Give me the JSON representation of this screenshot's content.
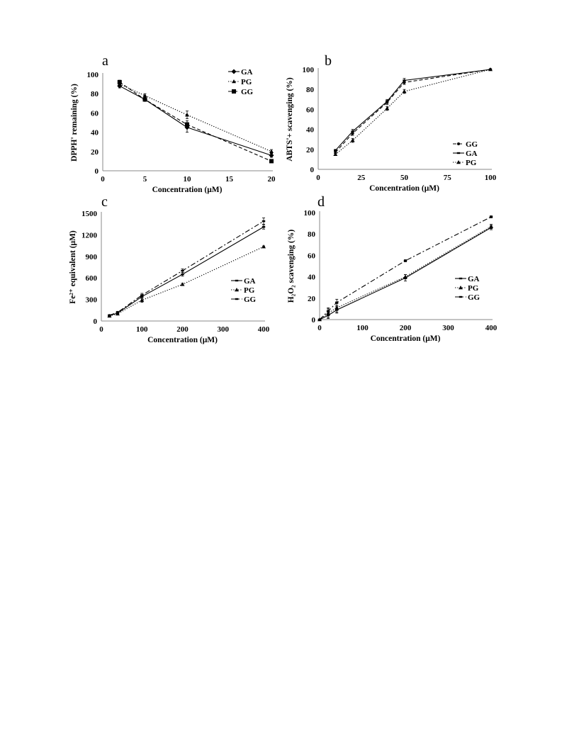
{
  "chart_data": [
    {
      "panel": "a",
      "type": "line",
      "xlabel": "Concentration (μM)",
      "ylabel": "DPPH' remaining (%)",
      "xlim": [
        0,
        20
      ],
      "ylim": [
        0,
        100
      ],
      "xticks": [
        "0",
        "5",
        "10",
        "15",
        "20"
      ],
      "yticks": [
        "0",
        "20",
        "40",
        "60",
        "80",
        "100"
      ],
      "legend_position": "top-right",
      "series": [
        {
          "name": "GA",
          "style": "solid",
          "marker": "diamond",
          "x": [
            2,
            5,
            10,
            20
          ],
          "y": [
            88,
            74,
            45,
            16
          ],
          "err": [
            2,
            2,
            5,
            2
          ]
        },
        {
          "name": "PG",
          "style": "dotted",
          "marker": "triangle",
          "x": [
            2,
            5,
            10,
            20
          ],
          "y": [
            90,
            78,
            58,
            20
          ],
          "err": [
            2,
            2,
            4,
            2
          ]
        },
        {
          "name": "GG",
          "style": "dashed",
          "marker": "square",
          "x": [
            2,
            5,
            10,
            20
          ],
          "y": [
            92,
            74,
            48,
            10
          ],
          "err": [
            2,
            2,
            4,
            1
          ]
        }
      ]
    },
    {
      "panel": "b",
      "type": "line",
      "xlabel": "Concentration (μM)",
      "ylabel": "ABTS'+ scavenging (%)",
      "xlim": [
        0,
        100
      ],
      "ylim": [
        0,
        100
      ],
      "xticks": [
        "0",
        "25",
        "50",
        "75",
        "100"
      ],
      "yticks": [
        "0",
        "20",
        "40",
        "60",
        "80",
        "100"
      ],
      "legend_position": "bottom-right",
      "series": [
        {
          "name": "GG",
          "style": "dashed",
          "marker": "circle",
          "x": [
            10,
            20,
            40,
            50,
            100
          ],
          "y": [
            17,
            36,
            67,
            87,
            100
          ],
          "err": [
            1,
            2,
            2,
            2,
            0
          ]
        },
        {
          "name": "GA",
          "style": "solid",
          "marker": "dash",
          "x": [
            10,
            20,
            40,
            50,
            100
          ],
          "y": [
            19,
            38,
            68,
            89,
            100
          ],
          "err": [
            1,
            2,
            2,
            2,
            0
          ]
        },
        {
          "name": "PG",
          "style": "dotted",
          "marker": "triangle",
          "x": [
            10,
            20,
            40,
            50,
            100
          ],
          "y": [
            15,
            29,
            61,
            78,
            100
          ],
          "err": [
            1,
            2,
            2,
            2,
            0
          ]
        }
      ]
    },
    {
      "panel": "c",
      "type": "line",
      "xlabel": "Concentration (μM)",
      "ylabel": "Fe²⁺ equivalent (μM)",
      "xlim": [
        0,
        400
      ],
      "ylim": [
        0,
        1500
      ],
      "xticks": [
        "0",
        "100",
        "200",
        "300",
        "400"
      ],
      "yticks": [
        "0",
        "300",
        "600",
        "900",
        "1200",
        "1500"
      ],
      "legend_position": "bottom-right",
      "series": [
        {
          "name": "GA",
          "style": "solid",
          "marker": "dash",
          "x": [
            20,
            40,
            100,
            200,
            400
          ],
          "y": [
            75,
            110,
            340,
            650,
            1310
          ],
          "err": [
            10,
            15,
            25,
            25,
            30
          ]
        },
        {
          "name": "PG",
          "style": "dotted",
          "marker": "triangle",
          "x": [
            20,
            40,
            100,
            200,
            400
          ],
          "y": [
            70,
            100,
            290,
            510,
            1035
          ],
          "err": [
            10,
            15,
            30,
            15,
            10
          ]
        },
        {
          "name": "GG",
          "style": "dashdot",
          "marker": "dash",
          "x": [
            20,
            40,
            100,
            200,
            400
          ],
          "y": [
            80,
            120,
            360,
            700,
            1390
          ],
          "err": [
            10,
            15,
            25,
            25,
            45
          ]
        }
      ]
    },
    {
      "panel": "d",
      "type": "line",
      "xlabel": "Concentration (μM)",
      "ylabel": "H₂O₂ scavenging (%)",
      "xlim": [
        0,
        400
      ],
      "ylim": [
        0,
        100
      ],
      "xticks": [
        "0",
        "100",
        "200",
        "300",
        "400"
      ],
      "yticks": [
        "0",
        "20",
        "40",
        "60",
        "80",
        "100"
      ],
      "legend_position": "bottom-right",
      "series": [
        {
          "name": "GA",
          "style": "solid",
          "marker": "dash",
          "x": [
            0,
            20,
            40,
            200,
            400
          ],
          "y": [
            0,
            4,
            9,
            39,
            86
          ],
          "err": [
            0,
            3,
            3,
            3,
            2
          ]
        },
        {
          "name": "PG",
          "style": "dotted",
          "marker": "triangle",
          "x": [
            0,
            20,
            40,
            200,
            400
          ],
          "y": [
            0,
            6,
            11,
            40,
            87
          ],
          "err": [
            0,
            4,
            4,
            2,
            2
          ]
        },
        {
          "name": "GG",
          "style": "dashdot",
          "marker": "dash",
          "x": [
            0,
            20,
            40,
            200,
            400
          ],
          "y": [
            0,
            8,
            16,
            55,
            96
          ],
          "err": [
            0,
            3,
            3,
            1,
            1
          ]
        }
      ]
    }
  ]
}
